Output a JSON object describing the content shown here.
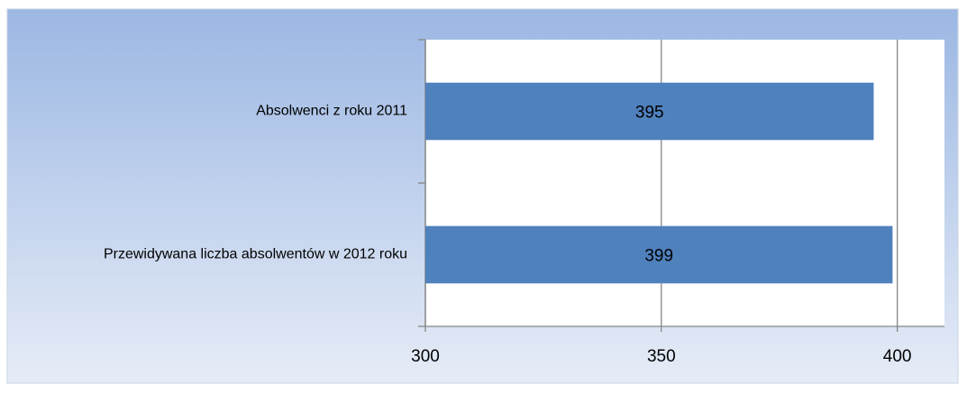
{
  "chart_data": {
    "type": "bar",
    "orientation": "horizontal",
    "categories": [
      "Absolwenci z roku 2011",
      "Przewidywana liczba absolwentów w 2012 roku"
    ],
    "values": [
      395,
      399
    ],
    "color": "#4f81bd",
    "xlim": [
      300,
      410
    ],
    "xticks": [
      300,
      350,
      400
    ],
    "grid": true
  }
}
